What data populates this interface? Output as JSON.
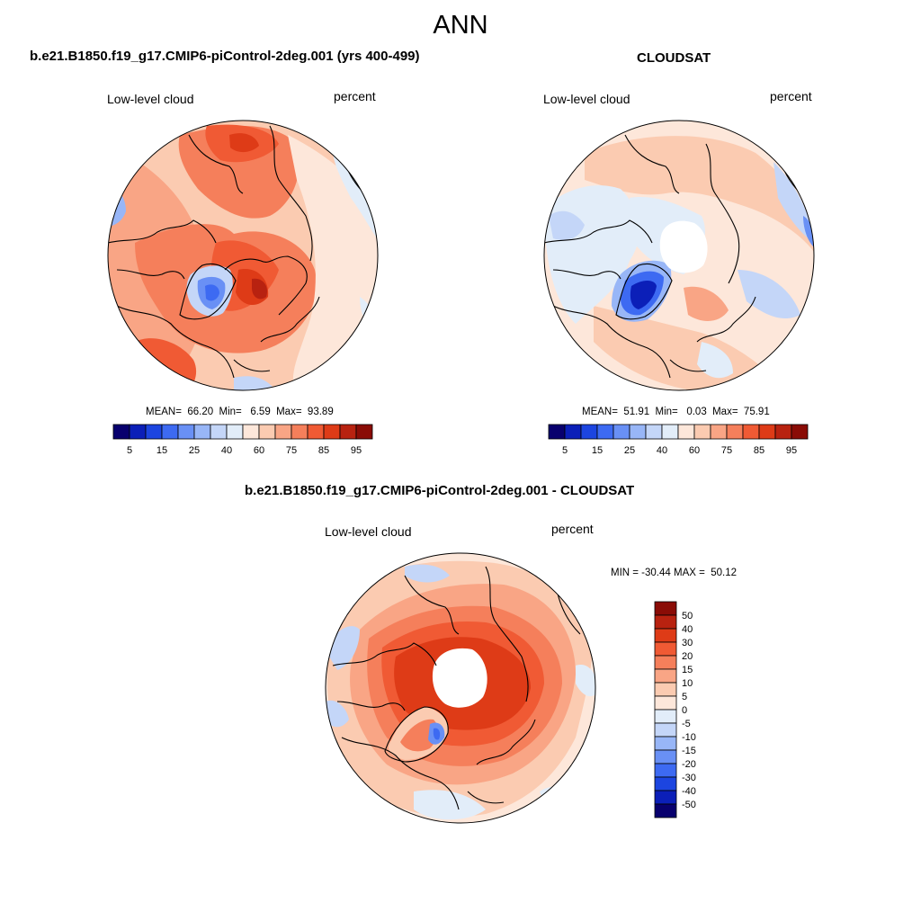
{
  "figure": {
    "season": "ANN",
    "panels": [
      {
        "title": "b.e21.B1850.f19_g17.CMIP6-piControl-2deg.001 (yrs 400-499)",
        "variable": "Low-level cloud",
        "units": "percent",
        "stats_text": "MEAN=  66.20  Min=   6.59  Max=  93.89"
      },
      {
        "title": "CLOUDSAT",
        "variable": "Low-level cloud",
        "units": "percent",
        "stats_text": "MEAN=  51.91  Min=   0.03  Max=  75.91"
      },
      {
        "title": "b.e21.B1850.f19_g17.CMIP6-piControl-2deg.001 - CLOUDSAT",
        "variable": "Low-level cloud",
        "units": "percent",
        "stats_text": "MIN = -30.44 MAX =  50.12"
      }
    ]
  },
  "chart_data": [
    {
      "type": "polar-contour-map",
      "projection": "north-polar-stereographic",
      "title": "b.e21.B1850.f19_g17.CMIP6-piControl-2deg.001 (yrs 400-499)",
      "variable": "Low-level cloud",
      "units": "percent",
      "stats": {
        "mean": 66.2,
        "min": 6.59,
        "max": 93.89
      },
      "colorbar": {
        "orientation": "horizontal",
        "levels": [
          5,
          10,
          15,
          20,
          25,
          30,
          40,
          50,
          60,
          65,
          75,
          80,
          85,
          90,
          95
        ],
        "tick_labels": [
          "5",
          "15",
          "25",
          "40",
          "60",
          "75",
          "85",
          "95"
        ],
        "colors": [
          "#08006e",
          "#0b1fb8",
          "#1c45e0",
          "#3d6af2",
          "#6990f5",
          "#98b6f7",
          "#c4d6f8",
          "#e2edf9",
          "#fde7da",
          "#fbcbb1",
          "#f9a585",
          "#f57f5b",
          "#f05a34",
          "#de3b17",
          "#b82210",
          "#8a0c06"
        ]
      }
    },
    {
      "type": "polar-contour-map",
      "projection": "north-polar-stereographic",
      "title": "CLOUDSAT",
      "variable": "Low-level cloud",
      "units": "percent",
      "stats": {
        "mean": 51.91,
        "min": 0.03,
        "max": 75.91
      },
      "colorbar": {
        "orientation": "horizontal",
        "levels": [
          5,
          10,
          15,
          20,
          25,
          30,
          40,
          50,
          60,
          65,
          75,
          80,
          85,
          90,
          95
        ],
        "tick_labels": [
          "5",
          "15",
          "25",
          "40",
          "60",
          "75",
          "85",
          "95"
        ],
        "colors": [
          "#08006e",
          "#0b1fb8",
          "#1c45e0",
          "#3d6af2",
          "#6990f5",
          "#98b6f7",
          "#c4d6f8",
          "#e2edf9",
          "#fde7da",
          "#fbcbb1",
          "#f9a585",
          "#f57f5b",
          "#f05a34",
          "#de3b17",
          "#b82210",
          "#8a0c06"
        ]
      }
    },
    {
      "type": "polar-contour-map",
      "projection": "north-polar-stereographic",
      "title": "b.e21.B1850.f19_g17.CMIP6-piControl-2deg.001 - CLOUDSAT",
      "variable": "Low-level cloud",
      "units": "percent",
      "stats": {
        "min": -30.44,
        "max": 50.12
      },
      "colorbar": {
        "orientation": "vertical",
        "levels": [
          -50,
          -40,
          -30,
          -20,
          -15,
          -10,
          -5,
          0,
          5,
          10,
          15,
          20,
          30,
          40,
          50
        ],
        "tick_labels": [
          "50",
          "40",
          "30",
          "20",
          "15",
          "10",
          "5",
          "0",
          "-5",
          "-10",
          "-15",
          "-20",
          "-30",
          "-40",
          "-50"
        ],
        "colors": [
          "#8a0c06",
          "#b82210",
          "#de3b17",
          "#f05a34",
          "#f57f5b",
          "#f9a585",
          "#fbcbb1",
          "#fde7da",
          "#e2edf9",
          "#c4d6f8",
          "#98b6f7",
          "#6990f5",
          "#3d6af2",
          "#1c45e0",
          "#0b1fb8",
          "#08006e"
        ]
      }
    }
  ]
}
